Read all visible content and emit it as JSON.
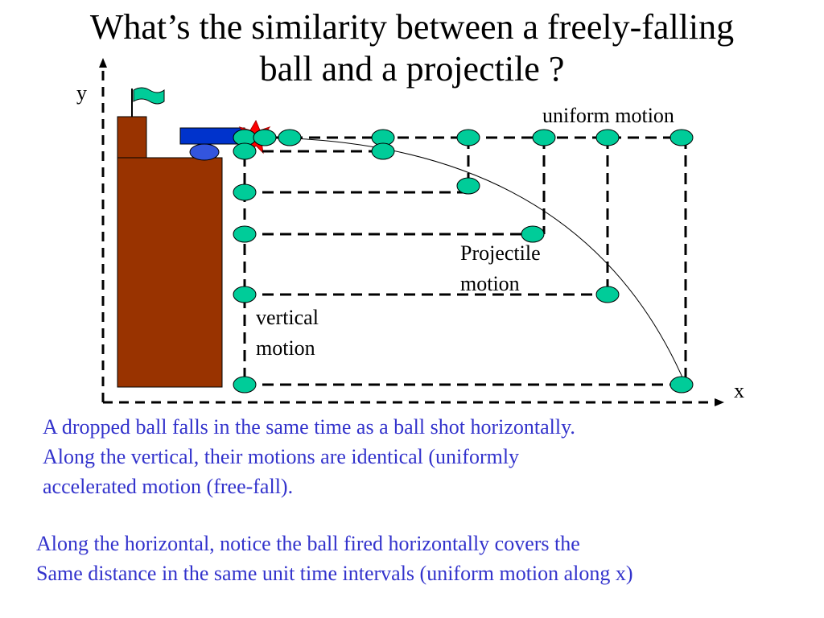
{
  "title": {
    "line1": "What’s the similarity between a freely-falling",
    "line2": "ball and a projectile ?"
  },
  "diagram": {
    "axis_x_label": "x",
    "axis_y_label": "y",
    "label_uniform": "uniform motion",
    "label_projectile": [
      "Projectile",
      "motion"
    ],
    "label_vertical": [
      "vertical",
      "motion"
    ],
    "colors": {
      "ball": "#00cc99",
      "building": "#993300",
      "cannon": "#0033cc",
      "cannon_base": "#3355dd",
      "flag": "#00cc99",
      "explosion": "#ff0000",
      "explosion_core": "#ffff00",
      "text_blue": "#3333cc"
    }
  },
  "paragraph1": [
    "A dropped ball falls in the same time as a ball shot horizontally.",
    "Along the vertical, their motions are identical (uniformly",
    "accelerated motion (free-fall)."
  ],
  "paragraph2": [
    "Along the horizontal, notice the ball fired horizontally covers the",
    "Same distance in the same unit time intervals (uniform motion along x)"
  ]
}
